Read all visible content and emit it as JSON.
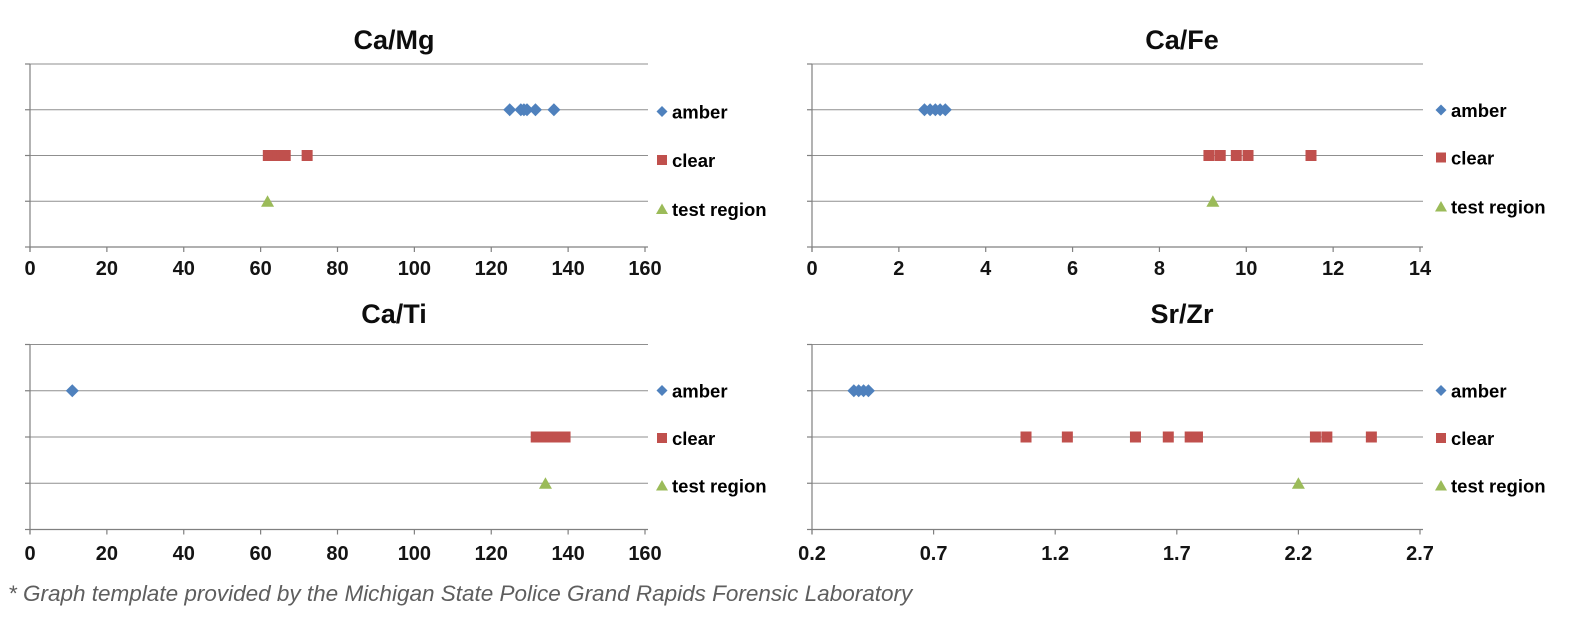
{
  "page": {
    "background": "#ffffff"
  },
  "footer": {
    "text": "* Graph template provided by the Michigan State Police Grand Rapids Forensic Laboratory"
  },
  "colors": {
    "amber": "#4F81BD",
    "clear": "#C0504D",
    "test_region": "#9BBB59",
    "gridline": "#8f8f8f",
    "axis": "#808080",
    "title_text": "#0d0d0d",
    "tick_label_text": "#141414",
    "legend_text": "#000000",
    "footer_text": "#5e5e5e"
  },
  "legend": {
    "position": "right",
    "items": [
      {
        "label": "amber",
        "marker": "diamond",
        "color": "#4F81BD"
      },
      {
        "label": "clear",
        "marker": "square",
        "color": "#C0504D"
      },
      {
        "label": "test region",
        "marker": "triangle",
        "color": "#9BBB59"
      }
    ]
  },
  "chart_data": [
    {
      "type": "scatter",
      "title": "Ca/Mg",
      "xlabel": "",
      "ylabel": "",
      "xlim": [
        0,
        160
      ],
      "x_tick_labels": [
        "0",
        "20",
        "40",
        "60",
        "80",
        "100",
        "120",
        "140",
        "160"
      ],
      "x_tick_values": [
        0,
        20,
        40,
        60,
        80,
        100,
        120,
        140,
        160
      ],
      "grid": true,
      "legend_position": "right",
      "series": [
        {
          "name": "amber",
          "marker": "diamond",
          "color": "#4F81BD",
          "row": 3,
          "values": [
            124.8,
            127.7,
            128.5,
            129.3,
            131.5,
            136.3
          ]
        },
        {
          "name": "clear",
          "marker": "square",
          "color": "#C0504D",
          "row": 2,
          "values": [
            62.0,
            63.2,
            64.4,
            65.6,
            66.4,
            72.1
          ]
        },
        {
          "name": "test region",
          "marker": "triangle",
          "color": "#9BBB59",
          "row": 1,
          "values": [
            61.8
          ]
        }
      ]
    },
    {
      "type": "scatter",
      "title": "Ca/Fe",
      "xlabel": "",
      "ylabel": "",
      "xlim": [
        0,
        14
      ],
      "x_tick_labels": [
        "0",
        "2",
        "4",
        "6",
        "8",
        "10",
        "12",
        "14"
      ],
      "x_tick_values": [
        0,
        2,
        4,
        6,
        8,
        10,
        12,
        14
      ],
      "grid": true,
      "legend_position": "right",
      "series": [
        {
          "name": "amber",
          "marker": "diamond",
          "color": "#4F81BD",
          "row": 3,
          "values": [
            2.59,
            2.72,
            2.84,
            2.95,
            3.07
          ]
        },
        {
          "name": "clear",
          "marker": "square",
          "color": "#C0504D",
          "row": 2,
          "values": [
            9.14,
            9.4,
            9.77,
            10.04,
            11.49
          ]
        },
        {
          "name": "test region",
          "marker": "triangle",
          "color": "#9BBB59",
          "row": 1,
          "values": [
            9.23
          ]
        }
      ]
    },
    {
      "type": "scatter",
      "title": "Ca/Ti",
      "xlabel": "",
      "ylabel": "",
      "xlim": [
        0,
        160
      ],
      "x_tick_labels": [
        "0",
        "20",
        "40",
        "60",
        "80",
        "100",
        "120",
        "140",
        "160"
      ],
      "x_tick_values": [
        0,
        20,
        40,
        60,
        80,
        100,
        120,
        140,
        160
      ],
      "grid": true,
      "legend_position": "right",
      "series": [
        {
          "name": "amber",
          "marker": "diamond",
          "color": "#4F81BD",
          "row": 3,
          "values": [
            11.0
          ]
        },
        {
          "name": "clear",
          "marker": "square",
          "color": "#C0504D",
          "row": 2,
          "values": [
            131.7,
            133.6,
            135.5,
            137.4,
            139.2
          ]
        },
        {
          "name": "test region",
          "marker": "triangle",
          "color": "#9BBB59",
          "row": 1,
          "values": [
            134.1
          ]
        }
      ]
    },
    {
      "type": "scatter",
      "title": "Sr/Zr",
      "xlabel": "",
      "ylabel": "",
      "xlim": [
        0.2,
        2.7
      ],
      "x_tick_labels": [
        "0.2",
        "0.7",
        "1.2",
        "1.7",
        "2.2",
        "2.7"
      ],
      "x_tick_values": [
        0.2,
        0.7,
        1.2,
        1.7,
        2.2,
        2.7
      ],
      "grid": true,
      "legend_position": "right",
      "series": [
        {
          "name": "amber",
          "marker": "diamond",
          "color": "#4F81BD",
          "row": 3,
          "values": [
            0.372,
            0.392,
            0.412,
            0.432
          ]
        },
        {
          "name": "clear",
          "marker": "square",
          "color": "#C0504D",
          "row": 2,
          "values": [
            1.08,
            1.25,
            1.53,
            1.665,
            1.755,
            1.785,
            2.27,
            2.317,
            2.5
          ]
        },
        {
          "name": "test region",
          "marker": "triangle",
          "color": "#9BBB59",
          "row": 1,
          "values": [
            2.2
          ]
        }
      ]
    }
  ]
}
